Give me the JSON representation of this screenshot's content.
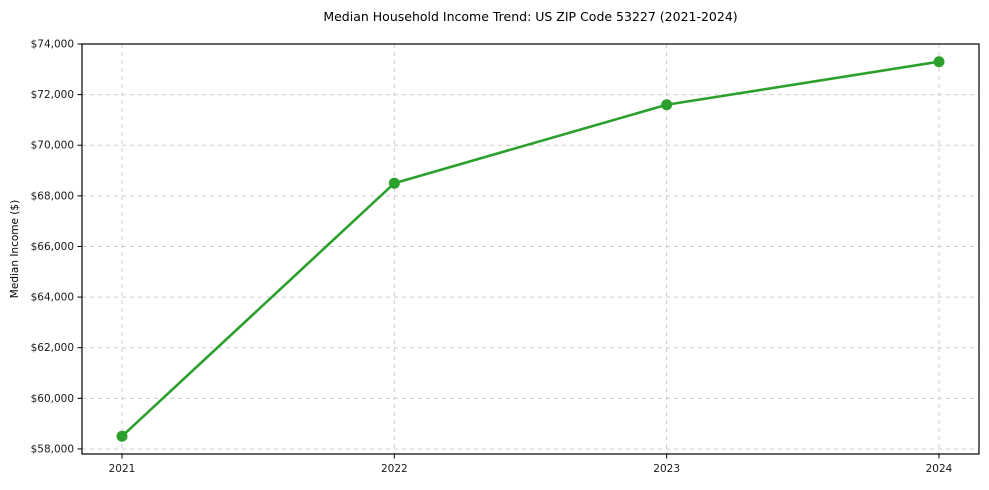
{
  "chart_data": {
    "type": "line",
    "title": "Median Household Income Trend: US ZIP Code 53227 (2021-2024)",
    "xlabel": "",
    "ylabel": "Median Income ($)",
    "categories": [
      "2021",
      "2022",
      "2023",
      "2024"
    ],
    "series": [
      {
        "name": "Median Household Income",
        "values": [
          58500,
          68500,
          71600,
          73300
        ]
      }
    ],
    "ylim": [
      57800,
      74000
    ],
    "ytick_values": [
      58000,
      60000,
      62000,
      64000,
      66000,
      68000,
      70000,
      72000,
      74000
    ],
    "ytick_labels": [
      "$58,000",
      "$60,000",
      "$62,000",
      "$64,000",
      "$66,000",
      "$68,000",
      "$70,000",
      "$72,000",
      "$74,000"
    ],
    "xtick_labels": [
      "2021",
      "2022",
      "2023",
      "2024"
    ],
    "grid": true,
    "grid_style": "dashed",
    "legend": "none",
    "marker": "circle",
    "colors": {
      "line": "#2ca02c",
      "grid": "#cccccc",
      "axis": "#000000",
      "text": "#1a1a1a",
      "background": "#ffffff"
    }
  }
}
